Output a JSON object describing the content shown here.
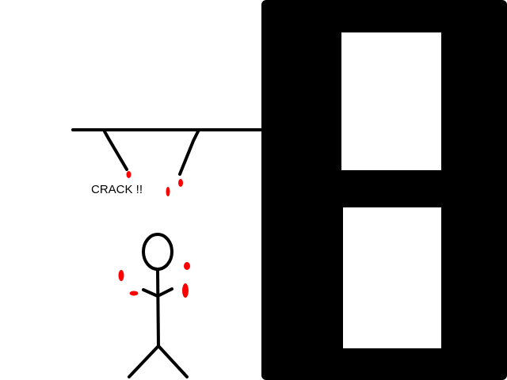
{
  "drawing": {
    "caption": "CRACK !!",
    "colors": {
      "background": "#ffffff",
      "ink": "#000000",
      "blood": "#ff0000",
      "panel": "#000000",
      "window": "#ffffff"
    }
  }
}
